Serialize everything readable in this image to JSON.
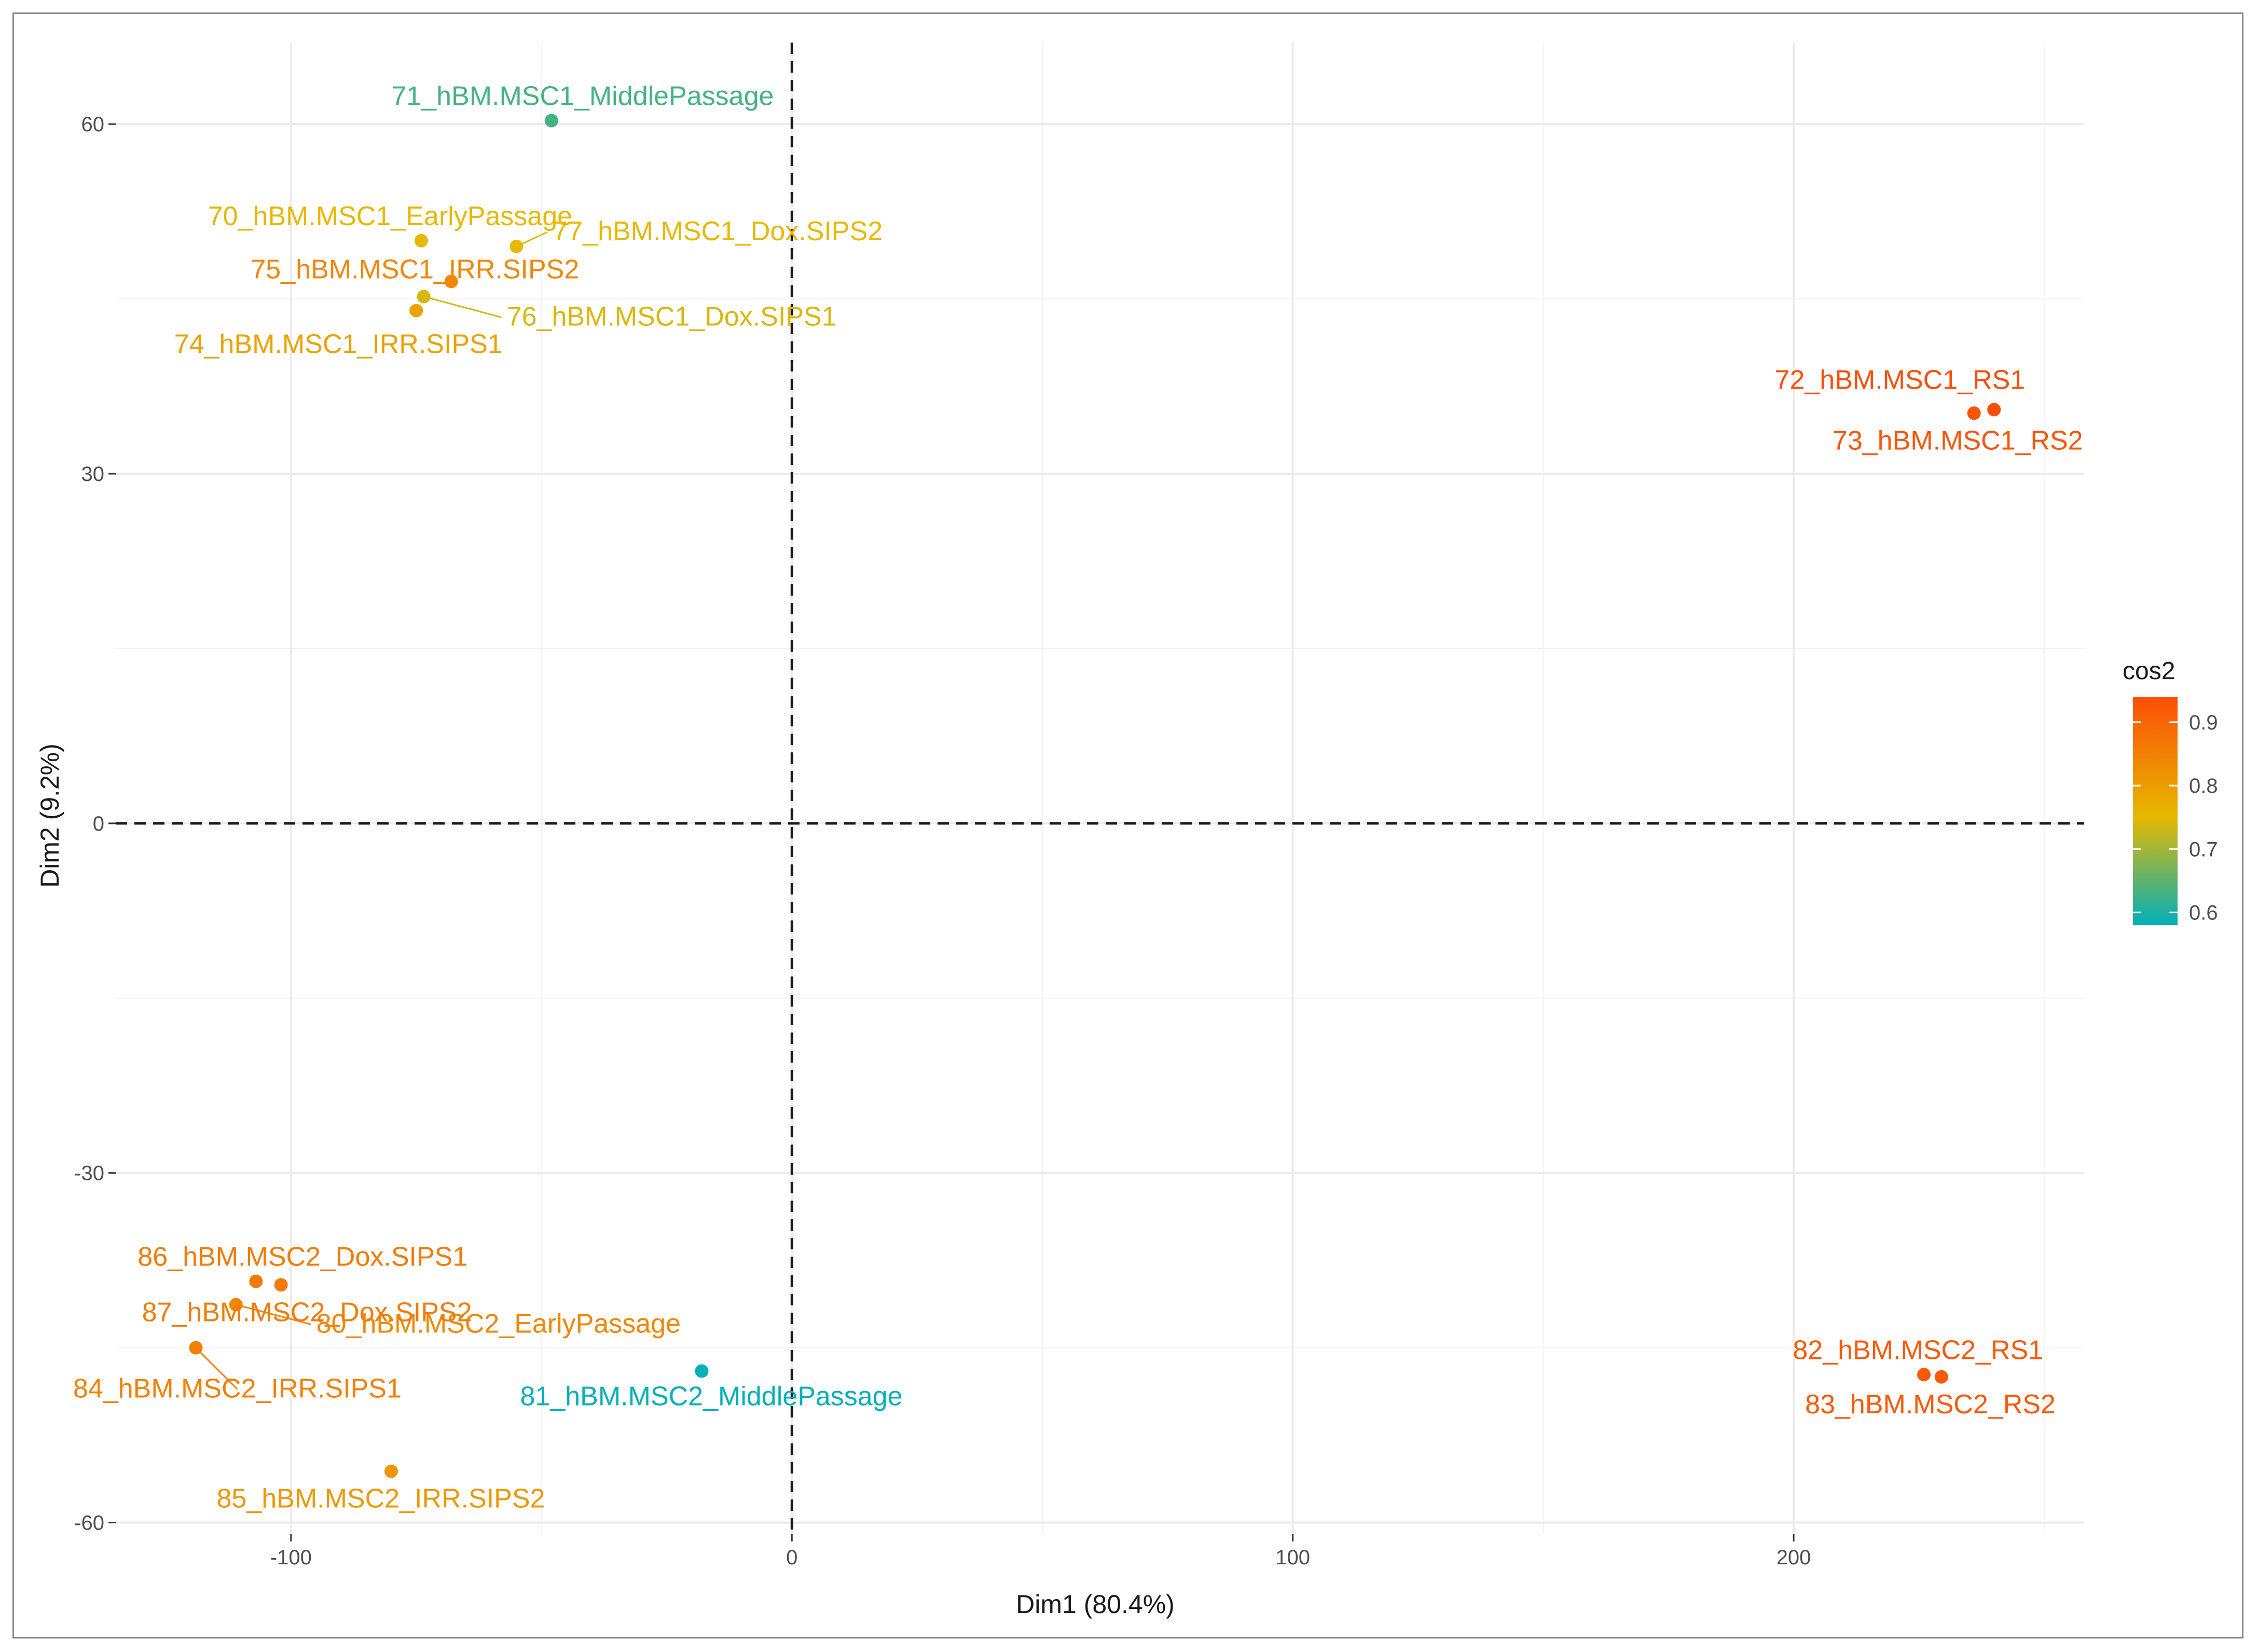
{
  "chart_data": {
    "type": "scatter",
    "title": "",
    "xlabel": "Dim1 (80.4%)",
    "ylabel": "Dim2 (9.2%)",
    "xlim": [
      -135,
      258
    ],
    "ylim": [
      -61,
      67
    ],
    "xticks": [
      -100,
      0,
      100,
      200
    ],
    "yticks": [
      -60,
      -30,
      0,
      30,
      60
    ],
    "grid": true,
    "reference_lines": {
      "x": 0,
      "y": 0,
      "style": "dashed"
    },
    "color_variable": "cos2",
    "color_scale": {
      "title": "cos2",
      "min": 0.58,
      "max": 0.94,
      "ticks": [
        0.6,
        0.7,
        0.8,
        0.9
      ],
      "stops": [
        {
          "value": 0.58,
          "color": "#00AFBB"
        },
        {
          "value": 0.75,
          "color": "#E7B800"
        },
        {
          "value": 0.94,
          "color": "#FC4E07"
        }
      ]
    },
    "legend_position": "right",
    "points": [
      {
        "label": "70_hBM.MSC1_EarlyPassage",
        "x": -74,
        "y": 50,
        "cos2": 0.75
      },
      {
        "label": "71_hBM.MSC1_MiddlePassage",
        "x": -48,
        "y": 60.3,
        "cos2": 0.63
      },
      {
        "label": "72_hBM.MSC1_RS1",
        "x": 240,
        "y": 35.5,
        "cos2": 0.94
      },
      {
        "label": "73_hBM.MSC1_RS2",
        "x": 236,
        "y": 35.2,
        "cos2": 0.93
      },
      {
        "label": "74_hBM.MSC1_IRR.SIPS1",
        "x": -75,
        "y": 44,
        "cos2": 0.79
      },
      {
        "label": "75_hBM.MSC1_IRR.SIPS2",
        "x": -68,
        "y": 46.5,
        "cos2": 0.84
      },
      {
        "label": "76_hBM.MSC1_Dox.SIPS1",
        "x": -73.5,
        "y": 45.2,
        "cos2": 0.74
      },
      {
        "label": "77_hBM.MSC1_Dox.SIPS2",
        "x": -55,
        "y": 49.5,
        "cos2": 0.75
      },
      {
        "label": "80_hBM.MSC2_EarlyPassage",
        "x": -111,
        "y": -41.3,
        "cos2": 0.84
      },
      {
        "label": "81_hBM.MSC2_MiddlePassage",
        "x": -18,
        "y": -47,
        "cos2": 0.58
      },
      {
        "label": "82_hBM.MSC2_RS1",
        "x": 226,
        "y": -47.3,
        "cos2": 0.92
      },
      {
        "label": "83_hBM.MSC2_RS2",
        "x": 229.5,
        "y": -47.5,
        "cos2": 0.92
      },
      {
        "label": "84_hBM.MSC2_IRR.SIPS1",
        "x": -119,
        "y": -45,
        "cos2": 0.85
      },
      {
        "label": "85_hBM.MSC2_IRR.SIPS2",
        "x": -80,
        "y": -55.6,
        "cos2": 0.81
      },
      {
        "label": "86_hBM.MSC2_Dox.SIPS1",
        "x": -107,
        "y": -39.3,
        "cos2": 0.86
      },
      {
        "label": "87_hBM.MSC2_Dox.SIPS2",
        "x": -102,
        "y": -39.6,
        "cos2": 0.86
      }
    ]
  }
}
